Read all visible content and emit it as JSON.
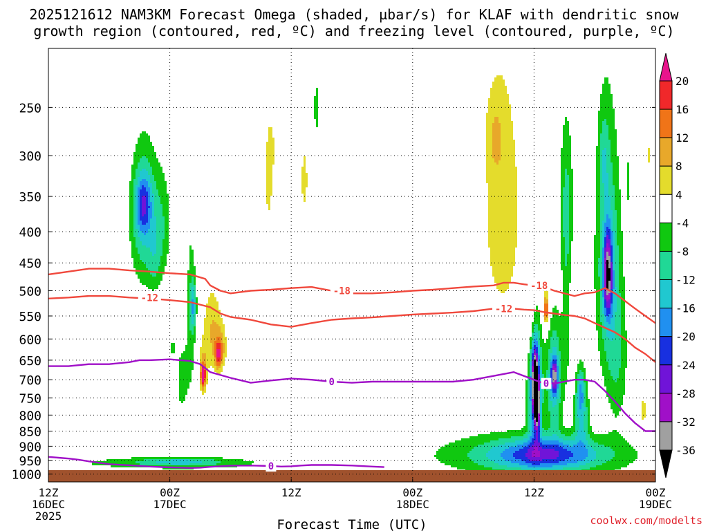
{
  "header": {
    "line1": "2025121612 NAM3KM Forecast Omega (shaded, µbar/s) for KLAF with dendritic snow",
    "line2": "growth region (contoured, red, ºC) and freezing level (contoured, purple, ºC)"
  },
  "credit": "coolwx.com/modelts",
  "chart_data": {
    "type": "time-height cross section",
    "xlabel": "Forecast Time (UTC)",
    "ylabel": "",
    "x_range_hours": [
      0,
      60
    ],
    "y_range_hPa": [
      1030,
      200
    ],
    "x_ticks": [
      {
        "hour": 0,
        "lines": [
          "12Z",
          "16DEC",
          "2025"
        ]
      },
      {
        "hour": 12,
        "lines": [
          "00Z",
          "17DEC"
        ]
      },
      {
        "hour": 24,
        "lines": [
          "12Z"
        ]
      },
      {
        "hour": 36,
        "lines": [
          "00Z",
          "18DEC"
        ]
      },
      {
        "hour": 48,
        "lines": [
          "12Z"
        ]
      },
      {
        "hour": 60,
        "lines": [
          "00Z",
          "19DEC"
        ]
      }
    ],
    "y_ticks": [
      250,
      300,
      350,
      400,
      450,
      500,
      550,
      600,
      650,
      700,
      750,
      800,
      850,
      900,
      950,
      1000
    ],
    "grid": true,
    "colorbar": {
      "labels": [
        "20",
        "16",
        "12",
        "8",
        "4",
        "-4",
        "-8",
        "-12",
        "-16",
        "-20",
        "-24",
        "-28",
        "-32",
        "-36"
      ],
      "bins": [
        {
          "lo": 20,
          "hi": null,
          "color": "#e8148c"
        },
        {
          "lo": 16,
          "hi": 20,
          "color": "#f0282a"
        },
        {
          "lo": 12,
          "hi": 16,
          "color": "#f07418"
        },
        {
          "lo": 8,
          "hi": 12,
          "color": "#e8a82a"
        },
        {
          "lo": 4,
          "hi": 8,
          "color": "#e4dc2c"
        },
        {
          "lo": -4,
          "hi": 4,
          "color": "#ffffff"
        },
        {
          "lo": -8,
          "hi": -4,
          "color": "#10c810"
        },
        {
          "lo": -12,
          "hi": -8,
          "color": "#20d896"
        },
        {
          "lo": -16,
          "hi": -12,
          "color": "#20c8d0"
        },
        {
          "lo": -20,
          "hi": -16,
          "color": "#2090f0"
        },
        {
          "lo": -24,
          "hi": -20,
          "color": "#1830e0"
        },
        {
          "lo": -28,
          "hi": -24,
          "color": "#7014d8"
        },
        {
          "lo": -32,
          "hi": -28,
          "color": "#a010c8"
        },
        {
          "lo": -36,
          "hi": -32,
          "color": "#a0a0a0"
        },
        {
          "lo": null,
          "hi": -36,
          "color": "#000000"
        }
      ]
    },
    "terrain_color": "#a0522d",
    "terrain_top_hPa": 985,
    "omega_features": [
      {
        "hour": 9.4,
        "hPa": 380,
        "hw": 1.3,
        "hh": 100,
        "peak": -12
      },
      {
        "hour": 9.4,
        "hPa": 360,
        "hw": 0.8,
        "hh": 40,
        "peak": -14
      },
      {
        "hour": 11.2,
        "hPa": 390,
        "hw": 1.0,
        "hh": 80,
        "peak": -7
      },
      {
        "hour": 10.5,
        "hPa": 450,
        "hw": 0.7,
        "hh": 50,
        "peak": -5
      },
      {
        "hour": 14.1,
        "hPa": 550,
        "hw": 0.5,
        "hh": 200,
        "peak": -6
      },
      {
        "hour": 14.3,
        "hPa": 530,
        "hw": 0.3,
        "hh": 50,
        "peak": -12
      },
      {
        "hour": 13.2,
        "hPa": 700,
        "hw": 0.6,
        "hh": 100,
        "peak": -6
      },
      {
        "hour": 12.3,
        "hPa": 620,
        "hw": 0.2,
        "hh": 25,
        "peak": -6
      },
      {
        "hour": 22.0,
        "hPa": 290,
        "hw": 0.4,
        "hh": 30,
        "peak": 5
      },
      {
        "hour": 21.8,
        "hPa": 340,
        "hw": 0.5,
        "hh": 60,
        "peak": 5
      },
      {
        "hour": 25.3,
        "hPa": 330,
        "hw": 0.5,
        "hh": 60,
        "peak": 5
      },
      {
        "hour": 26.5,
        "hPa": 250,
        "hw": 0.3,
        "hh": 30,
        "peak": -6
      },
      {
        "hour": 15.3,
        "hPa": 680,
        "hw": 0.4,
        "hh": 60,
        "peak": 11
      },
      {
        "hour": 15.3,
        "hPa": 690,
        "hw": 0.2,
        "hh": 25,
        "peak": 17
      },
      {
        "hour": 16.2,
        "hPa": 580,
        "hw": 0.9,
        "hh": 90,
        "peak": 8
      },
      {
        "hour": 17.0,
        "hPa": 620,
        "hw": 0.6,
        "hh": 50,
        "peak": 9
      },
      {
        "hour": 16.8,
        "hPa": 640,
        "hw": 0.3,
        "hh": 30,
        "peak": 12
      },
      {
        "hour": 44.9,
        "hPa": 370,
        "hw": 2.3,
        "hh": 210,
        "peak": 6
      },
      {
        "hour": 44.2,
        "hPa": 280,
        "hw": 0.8,
        "hh": 40,
        "peak": 5
      },
      {
        "hour": 47.7,
        "hPa": 570,
        "hw": 0.6,
        "hh": 120,
        "peak": 5
      },
      {
        "hour": 49.2,
        "hPa": 530,
        "hw": 0.4,
        "hh": 50,
        "peak": 9
      },
      {
        "hour": 49.2,
        "hPa": 540,
        "hw": 0.2,
        "hh": 20,
        "peak": 12
      },
      {
        "hour": 58.8,
        "hPa": 790,
        "hw": 0.5,
        "hh": 70,
        "peak": 5
      },
      {
        "hour": 59.3,
        "hPa": 300,
        "hw": 0.2,
        "hh": 20,
        "peak": 5
      },
      {
        "hour": 48.1,
        "hPa": 720,
        "hw": 0.7,
        "hh": 170,
        "peak": -22
      },
      {
        "hour": 48.1,
        "hPa": 700,
        "hw": 0.3,
        "hh": 80,
        "peak": -29
      },
      {
        "hour": 48.3,
        "hPa": 780,
        "hw": 0.3,
        "hh": 70,
        "peak": -26
      },
      {
        "hour": 50.0,
        "hPa": 700,
        "hw": 0.8,
        "hh": 150,
        "peak": -15
      },
      {
        "hour": 50.0,
        "hPa": 690,
        "hw": 0.3,
        "hh": 40,
        "peak": -22
      },
      {
        "hour": 51.2,
        "hPa": 360,
        "hw": 0.7,
        "hh": 110,
        "peak": -9
      },
      {
        "hour": 51.2,
        "hPa": 560,
        "hw": 0.4,
        "hh": 150,
        "peak": -6
      },
      {
        "hour": 52.7,
        "hPa": 800,
        "hw": 0.7,
        "hh": 100,
        "peak": -13
      },
      {
        "hour": 52.6,
        "hPa": 720,
        "hw": 0.4,
        "hh": 60,
        "peak": -10
      },
      {
        "hour": 55.3,
        "hPa": 450,
        "hw": 1.2,
        "hh": 200,
        "peak": -13
      },
      {
        "hour": 55.3,
        "hPa": 470,
        "hw": 0.4,
        "hh": 70,
        "peak": -26
      },
      {
        "hour": 54.9,
        "hPa": 300,
        "hw": 0.5,
        "hh": 50,
        "peak": -6
      },
      {
        "hour": 56.2,
        "hPa": 650,
        "hw": 1.1,
        "hh": 180,
        "peak": -7
      },
      {
        "hour": 57.3,
        "hPa": 330,
        "hw": 0.2,
        "hh": 30,
        "peak": -6
      },
      {
        "hour": 48.0,
        "hPa": 930,
        "hw": 10.0,
        "hh": 75,
        "peak": -10
      },
      {
        "hour": 49.0,
        "hPa": 930,
        "hw": 5.0,
        "hh": 55,
        "peak": -15
      },
      {
        "hour": 12.0,
        "hPa": 960,
        "hw": 12.0,
        "hh": 25,
        "peak": -6
      },
      {
        "hour": 13.0,
        "hPa": 955,
        "hw": 4.0,
        "hh": 15,
        "peak": -9
      }
    ],
    "contours": [
      {
        "label": "-18",
        "color": "#f0483c",
        "x": [
          0,
          2,
          4,
          6,
          8,
          10,
          12,
          14,
          15.5,
          16,
          17,
          18,
          20,
          22,
          24,
          26,
          28,
          30,
          32,
          34,
          36,
          38,
          40,
          42,
          44,
          45,
          46,
          47,
          48,
          49,
          50,
          51,
          52,
          53,
          54,
          55,
          56,
          57,
          58,
          59,
          60
        ],
        "hPa": [
          470,
          465,
          460,
          460,
          463,
          465,
          468,
          470,
          478,
          490,
          500,
          505,
          500,
          498,
          495,
          493,
          500,
          505,
          505,
          503,
          500,
          498,
          495,
          492,
          490,
          485,
          485,
          488,
          490,
          493,
          500,
          505,
          510,
          505,
          503,
          495,
          505,
          520,
          535,
          550,
          565
        ],
        "labelled": [
          {
            "hour": 29.0,
            "hPa": 500
          },
          {
            "hour": 48.5,
            "hPa": 490
          }
        ]
      },
      {
        "label": "-12",
        "color": "#f0483c",
        "x": [
          0,
          2,
          4,
          6,
          8,
          10,
          12,
          14,
          16,
          17,
          18,
          20,
          22,
          24,
          26,
          28,
          30,
          32,
          34,
          36,
          38,
          40,
          42,
          44,
          45,
          46,
          47,
          48,
          49,
          50,
          51,
          52,
          53,
          54,
          55,
          56,
          57,
          58,
          59,
          60
        ],
        "hPa": [
          515,
          513,
          510,
          510,
          513,
          515,
          518,
          522,
          532,
          545,
          552,
          558,
          568,
          573,
          565,
          558,
          555,
          553,
          550,
          547,
          545,
          543,
          540,
          535,
          532,
          535,
          537,
          538,
          542,
          545,
          548,
          550,
          555,
          565,
          575,
          585,
          600,
          620,
          635,
          655
        ],
        "labelled": [
          {
            "hour": 10.0,
            "hPa": 513
          },
          {
            "hour": 45.0,
            "hPa": 535
          }
        ]
      },
      {
        "label": "0",
        "color": "#a010c8",
        "x": [
          0,
          2,
          4,
          6,
          8,
          9,
          10,
          12,
          14,
          15,
          16,
          18,
          20,
          22,
          24,
          26,
          28,
          30,
          32,
          34,
          36,
          38,
          40,
          42,
          44,
          46,
          48,
          49,
          50,
          51,
          52,
          53,
          54,
          55,
          56,
          57,
          58,
          59,
          60
        ],
        "hPa": [
          665,
          665,
          660,
          660,
          655,
          650,
          650,
          648,
          652,
          660,
          680,
          695,
          708,
          702,
          697,
          700,
          705,
          708,
          705,
          705,
          705,
          705,
          705,
          700,
          690,
          680,
          700,
          710,
          710,
          705,
          700,
          700,
          705,
          730,
          760,
          795,
          825,
          850,
          850
        ],
        "labelled": [
          {
            "hour": 28.0,
            "hPa": 705
          },
          {
            "hour": 49.2,
            "hPa": 710
          }
        ]
      },
      {
        "label": "0",
        "color": "#a010c8",
        "x": [
          0,
          1,
          2,
          3,
          4,
          5,
          6,
          8,
          10,
          12,
          14,
          15,
          16,
          18,
          20,
          22,
          23,
          24,
          25,
          26,
          28,
          30,
          32,
          33.2
        ],
        "hPa": [
          937,
          940,
          943,
          947,
          953,
          958,
          963,
          967,
          972,
          975,
          977,
          976,
          973,
          969,
          968,
          970,
          972,
          971,
          968,
          966,
          966,
          968,
          972,
          974
        ],
        "labelled": [
          {
            "hour": 22.0,
            "hPa": 970
          }
        ]
      }
    ]
  }
}
